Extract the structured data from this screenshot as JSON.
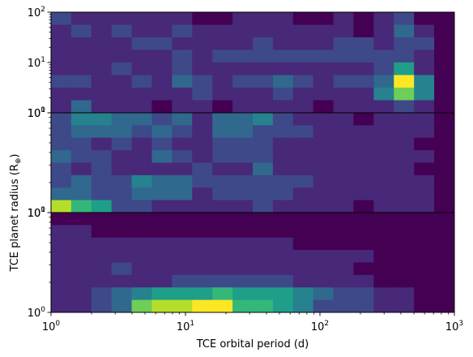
{
  "chart_data": {
    "type": "heatmap",
    "xlabel": "TCE orbital period (d)",
    "ylabel": "TCE planet radius (R",
    "ylabel_sub": "⊕",
    "ylabel_close": ")",
    "x_scale": "log",
    "y_scale": "log",
    "xlim": [
      1,
      1000
    ],
    "x_ticks": [
      {
        "base": "10",
        "exp": "0"
      },
      {
        "base": "10",
        "exp": "1"
      },
      {
        "base": "10",
        "exp": "2"
      },
      {
        "base": "10",
        "exp": "3"
      }
    ],
    "x_bins": 20,
    "y_bins": 8,
    "colormap": [
      "#440154",
      "#482878",
      "#3e4989",
      "#31688e",
      "#26828e",
      "#1f9e89",
      "#35b779",
      "#6ece58",
      "#b5de2b",
      "#fde725"
    ],
    "panels": [
      {
        "ylim": [
          1,
          100
        ],
        "y_ticks": [
          {
            "base": "10",
            "exp": "0"
          },
          {
            "base": "10",
            "exp": "1"
          },
          {
            "base": "10",
            "exp": "2"
          }
        ],
        "counts": [
          [
            2,
            1,
            1,
            1,
            1,
            1,
            1,
            0,
            0,
            1,
            1,
            1,
            0,
            0,
            1,
            0,
            1,
            2,
            0,
            0
          ],
          [
            1,
            2,
            1,
            2,
            1,
            1,
            2,
            1,
            1,
            1,
            1,
            1,
            1,
            1,
            1,
            0,
            1,
            3,
            1,
            0
          ],
          [
            1,
            1,
            1,
            1,
            2,
            2,
            1,
            1,
            1,
            1,
            2,
            1,
            1,
            1,
            2,
            2,
            1,
            2,
            2,
            0
          ],
          [
            1,
            1,
            1,
            1,
            1,
            1,
            2,
            1,
            2,
            2,
            2,
            2,
            2,
            2,
            2,
            2,
            2,
            2,
            1,
            0
          ],
          [
            1,
            1,
            1,
            2,
            1,
            1,
            2,
            1,
            1,
            1,
            1,
            1,
            1,
            1,
            1,
            1,
            2,
            5,
            1,
            0
          ],
          [
            2,
            2,
            1,
            1,
            2,
            1,
            3,
            2,
            1,
            2,
            2,
            3,
            2,
            1,
            2,
            2,
            3,
            9,
            4,
            0
          ],
          [
            1,
            1,
            1,
            1,
            1,
            1,
            1,
            2,
            1,
            1,
            1,
            2,
            1,
            1,
            1,
            1,
            4,
            7,
            4,
            0
          ],
          [
            1,
            3,
            1,
            1,
            1,
            0,
            1,
            1,
            0,
            1,
            1,
            1,
            1,
            0,
            1,
            1,
            1,
            2,
            1,
            0
          ]
        ]
      },
      {
        "ylim": [
          1,
          10
        ],
        "y_ticks": [
          {
            "base": "10",
            "exp": "0"
          },
          {
            "base": "10",
            "exp": "1"
          }
        ],
        "counts": [
          [
            2,
            4,
            4,
            3,
            3,
            2,
            3,
            1,
            3,
            3,
            4,
            2,
            1,
            1,
            1,
            0,
            1,
            1,
            1,
            0
          ],
          [
            2,
            3,
            3,
            3,
            2,
            3,
            2,
            1,
            3,
            3,
            2,
            2,
            2,
            1,
            1,
            1,
            1,
            1,
            1,
            0
          ],
          [
            2,
            2,
            1,
            2,
            1,
            2,
            1,
            1,
            2,
            2,
            2,
            1,
            1,
            1,
            1,
            1,
            1,
            1,
            0,
            0
          ],
          [
            3,
            2,
            2,
            1,
            1,
            3,
            2,
            1,
            2,
            2,
            2,
            1,
            1,
            1,
            1,
            1,
            1,
            1,
            1,
            0
          ],
          [
            2,
            1,
            2,
            1,
            1,
            1,
            1,
            2,
            1,
            1,
            3,
            1,
            1,
            1,
            1,
            1,
            1,
            1,
            0,
            0
          ],
          [
            2,
            3,
            2,
            2,
            4,
            3,
            3,
            2,
            2,
            2,
            2,
            2,
            2,
            1,
            1,
            1,
            1,
            1,
            1,
            0
          ],
          [
            3,
            3,
            2,
            2,
            3,
            3,
            3,
            1,
            2,
            2,
            2,
            2,
            1,
            1,
            1,
            1,
            1,
            1,
            1,
            0
          ],
          [
            8,
            6,
            5,
            2,
            2,
            1,
            1,
            1,
            1,
            1,
            2,
            1,
            1,
            1,
            1,
            0,
            1,
            1,
            1,
            0
          ]
        ]
      },
      {
        "ylim": [
          1,
          10
        ],
        "y_ticks": [
          {
            "base": "10",
            "exp": "0"
          },
          {
            "base": "10",
            "exp": "1"
          }
        ],
        "counts": [
          [
            0,
            0,
            0,
            0,
            0,
            0,
            0,
            0,
            0,
            0,
            0,
            0,
            0,
            0,
            0,
            0,
            0,
            0,
            0,
            0
          ],
          [
            1,
            1,
            0,
            0,
            0,
            0,
            0,
            0,
            0,
            0,
            0,
            0,
            0,
            0,
            0,
            0,
            0,
            0,
            0,
            0
          ],
          [
            1,
            1,
            1,
            1,
            1,
            1,
            1,
            1,
            1,
            1,
            1,
            1,
            0,
            0,
            0,
            0,
            0,
            0,
            0,
            0
          ],
          [
            1,
            1,
            1,
            1,
            1,
            1,
            1,
            1,
            1,
            1,
            1,
            1,
            1,
            1,
            1,
            1,
            0,
            0,
            0,
            0
          ],
          [
            1,
            1,
            1,
            2,
            1,
            1,
            1,
            1,
            1,
            1,
            1,
            1,
            1,
            1,
            1,
            0,
            0,
            0,
            0,
            0
          ],
          [
            1,
            1,
            1,
            1,
            1,
            1,
            2,
            2,
            2,
            2,
            2,
            2,
            1,
            1,
            1,
            1,
            0,
            0,
            0,
            0
          ],
          [
            1,
            1,
            2,
            3,
            4,
            5,
            5,
            5,
            6,
            5,
            5,
            5,
            4,
            3,
            2,
            2,
            1,
            1,
            0,
            0
          ],
          [
            1,
            1,
            2,
            3,
            7,
            8,
            8,
            9,
            10,
            6,
            6,
            5,
            4,
            2,
            2,
            2,
            1,
            1,
            0,
            0
          ]
        ]
      }
    ]
  }
}
